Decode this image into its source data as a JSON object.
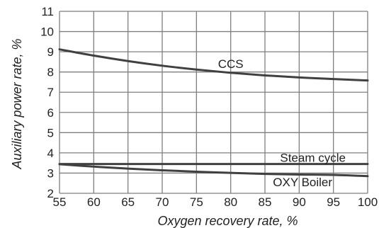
{
  "chart_data": {
    "type": "line",
    "title": "",
    "xlabel": "Oxygen recovery rate, %",
    "ylabel": "Auxiliary power rate, %",
    "xlim": [
      55,
      100
    ],
    "ylim": [
      2,
      11
    ],
    "xticks": [
      "55",
      "60",
      "65",
      "70",
      "75",
      "80",
      "85",
      "90",
      "95",
      "100"
    ],
    "yticks": [
      "2",
      "3",
      "4",
      "5",
      "6",
      "7",
      "8",
      "9",
      "10",
      "11"
    ],
    "grid": true,
    "line_color": "#404040",
    "grid_color": "#7f7f7f",
    "x": [
      55,
      60,
      65,
      70,
      75,
      80,
      85,
      90,
      95,
      100
    ],
    "series": [
      {
        "name": "CCS",
        "values": [
          9.12,
          8.81,
          8.54,
          8.31,
          8.12,
          7.96,
          7.83,
          7.73,
          7.65,
          7.58
        ]
      },
      {
        "name": "Steam cycle",
        "values": [
          3.45,
          3.45,
          3.45,
          3.45,
          3.45,
          3.45,
          3.45,
          3.45,
          3.45,
          3.45
        ]
      },
      {
        "name": "OXY Boiler",
        "values": [
          3.44,
          3.32,
          3.22,
          3.14,
          3.07,
          3.01,
          2.96,
          2.93,
          2.91,
          2.85
        ]
      }
    ],
    "annotations": [
      {
        "series": "CCS",
        "text": "CCS",
        "x": 80,
        "y": 8.4
      },
      {
        "series": "Steam cycle",
        "text": "Steam cycle",
        "x": 92,
        "y": 3.76
      },
      {
        "series": "OXY Boiler",
        "text": "OXY Boiler",
        "x": 90.5,
        "y": 2.56
      }
    ]
  }
}
